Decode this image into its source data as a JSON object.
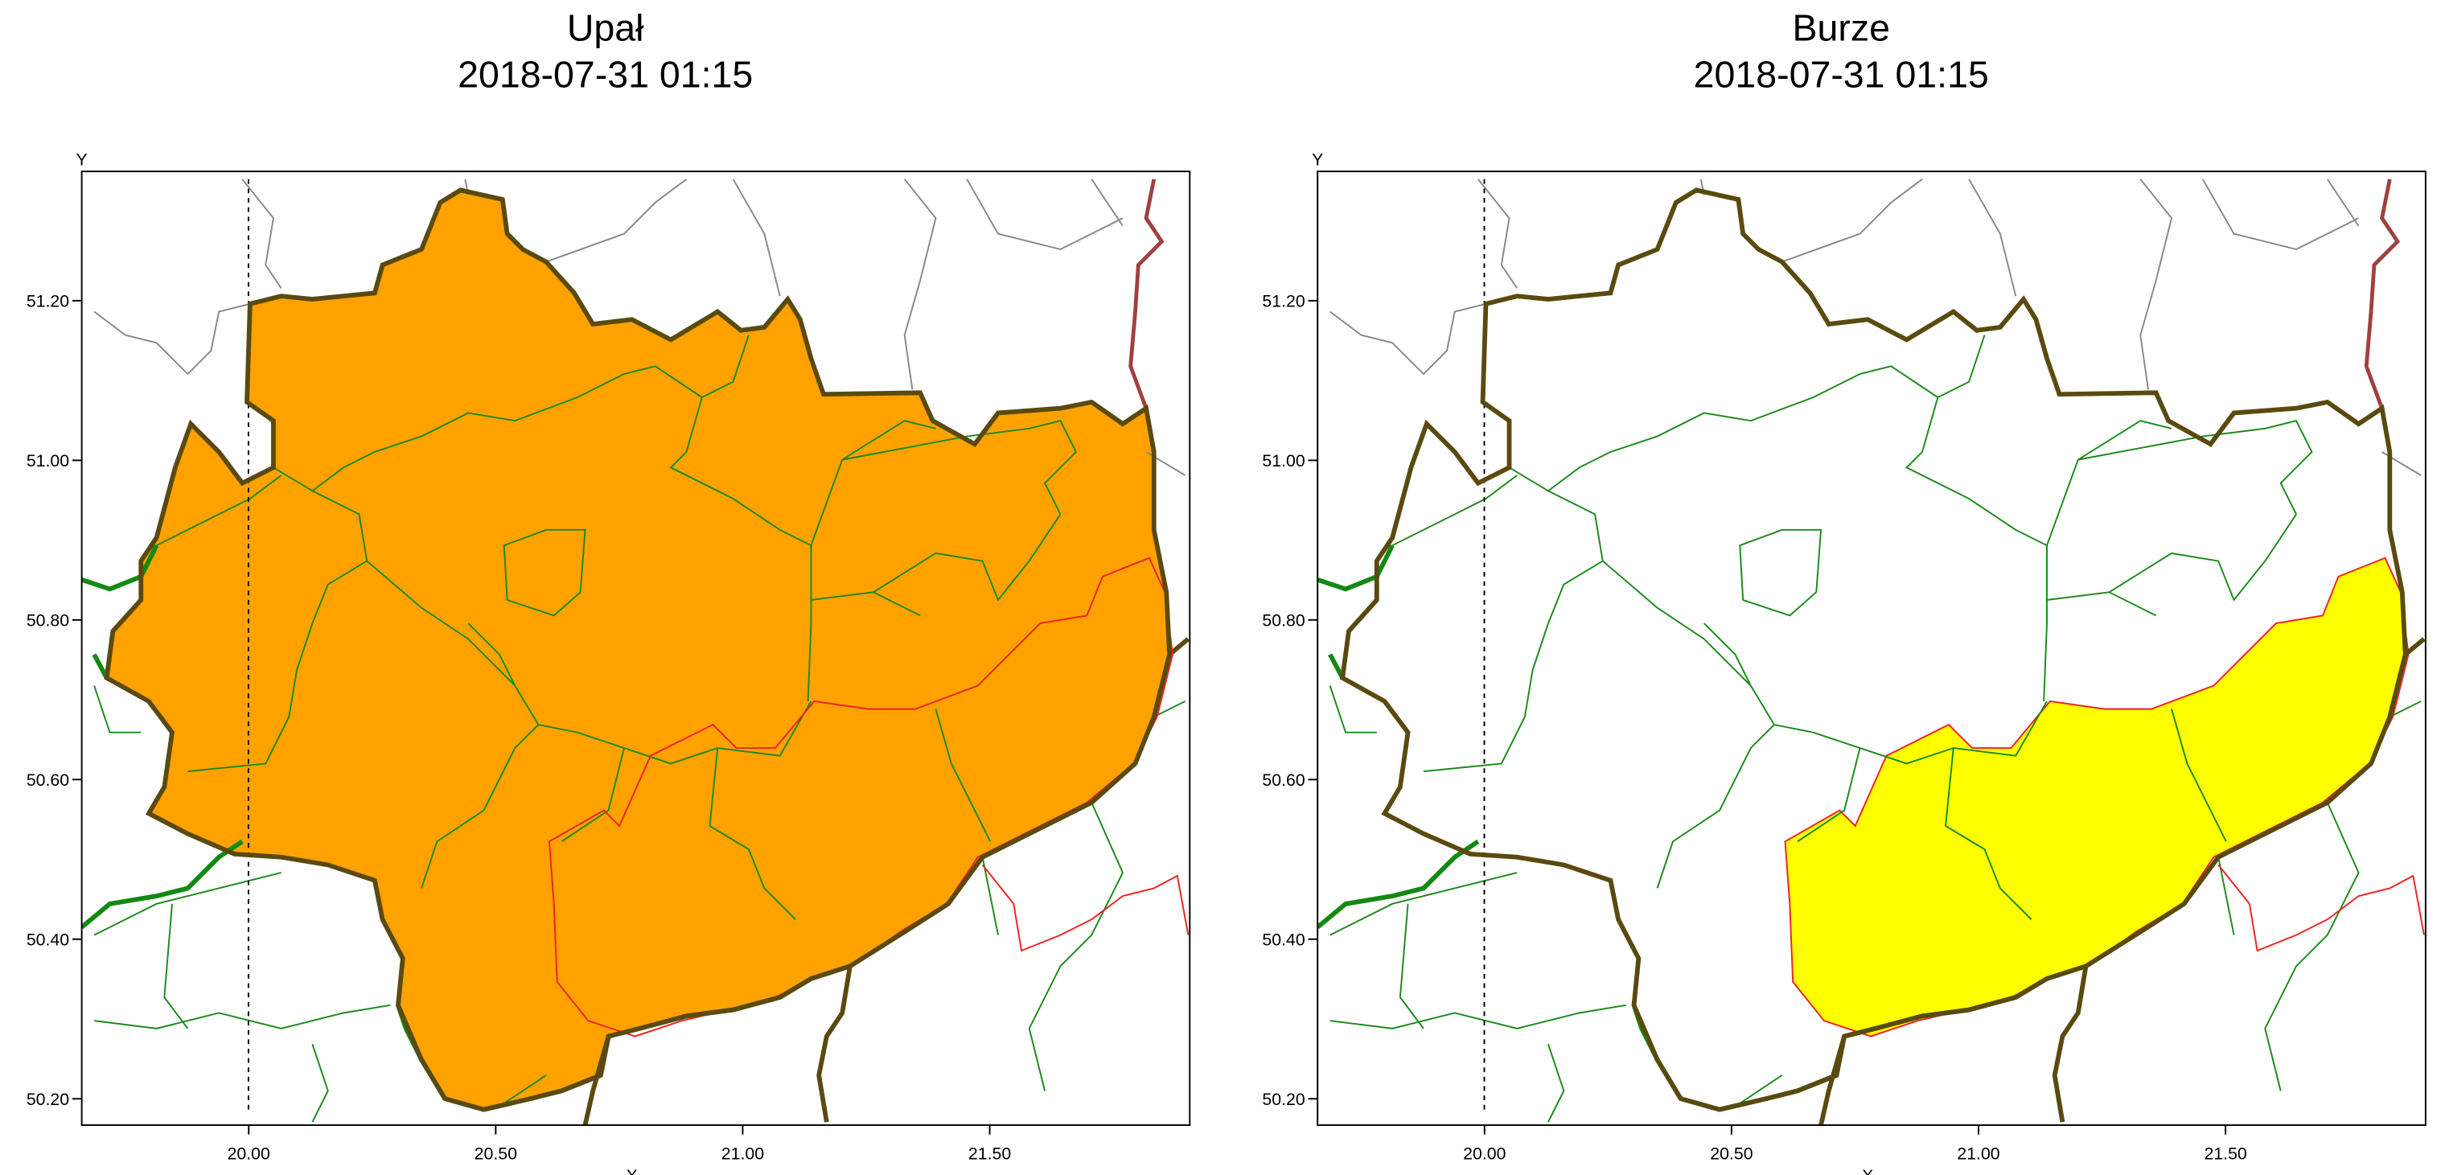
{
  "panels": [
    {
      "title": "Upał",
      "timestamp": "2018-07-31 01:15"
    },
    {
      "title": "Burze",
      "timestamp": "2018-07-31 01:15"
    }
  ],
  "map": {
    "xlim": [
      19.662,
      21.905
    ],
    "ylim": [
      50.167,
      51.362
    ],
    "xticks": [
      {
        "value": 20,
        "label": "20.00"
      },
      {
        "value": 20.5,
        "label": "20.50"
      },
      {
        "value": 21,
        "label": "21.00"
      },
      {
        "value": 21.5,
        "label": "21.50"
      }
    ],
    "yticks": [
      {
        "value": 50.2,
        "label": "50.20"
      },
      {
        "value": 50.4,
        "label": "50.40"
      },
      {
        "value": 50.6,
        "label": "50.60"
      },
      {
        "value": 50.8,
        "label": "50.80"
      },
      {
        "value": 51,
        "label": "51.00"
      },
      {
        "value": 51.2,
        "label": "51.20"
      }
    ],
    "x_label": "X",
    "y_label": "Y"
  }
}
